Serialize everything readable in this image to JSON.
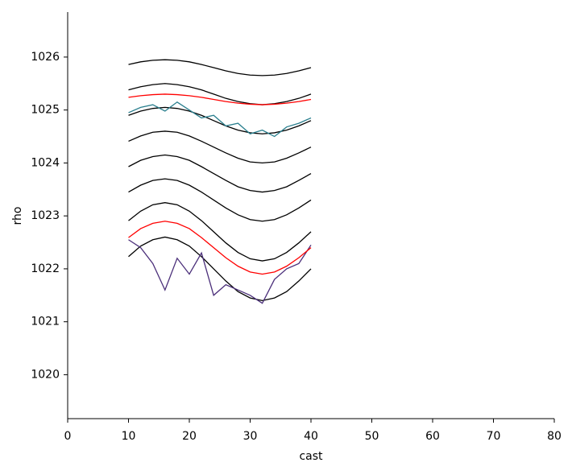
{
  "chart_data": {
    "type": "line",
    "x_label": "cast",
    "y_label": "rho",
    "x": [
      10,
      12,
      14,
      16,
      18,
      20,
      22,
      24,
      26,
      28,
      30,
      32,
      34,
      36,
      38,
      40
    ],
    "series": [
      {
        "color": "#000000",
        "values": [
          1025.86,
          1025.91,
          1025.94,
          1025.95,
          1025.94,
          1025.91,
          1025.86,
          1025.8,
          1025.74,
          1025.69,
          1025.66,
          1025.65,
          1025.66,
          1025.69,
          1025.74,
          1025.8
        ]
      },
      {
        "color": "#000000",
        "values": [
          1025.38,
          1025.44,
          1025.48,
          1025.5,
          1025.48,
          1025.44,
          1025.38,
          1025.3,
          1025.22,
          1025.16,
          1025.12,
          1025.1,
          1025.12,
          1025.16,
          1025.22,
          1025.3
        ]
      },
      {
        "color": "#000000",
        "values": [
          1024.9,
          1024.98,
          1025.03,
          1025.05,
          1025.03,
          1024.98,
          1024.9,
          1024.8,
          1024.7,
          1024.62,
          1024.57,
          1024.55,
          1024.57,
          1024.62,
          1024.7,
          1024.8
        ]
      },
      {
        "color": "#000000",
        "values": [
          1024.41,
          1024.51,
          1024.58,
          1024.6,
          1024.58,
          1024.51,
          1024.41,
          1024.3,
          1024.19,
          1024.09,
          1024.02,
          1024.0,
          1024.02,
          1024.09,
          1024.19,
          1024.3
        ]
      },
      {
        "color": "#000000",
        "values": [
          1023.93,
          1024.05,
          1024.12,
          1024.15,
          1024.12,
          1024.05,
          1023.93,
          1023.8,
          1023.67,
          1023.55,
          1023.48,
          1023.45,
          1023.48,
          1023.55,
          1023.67,
          1023.8
        ]
      },
      {
        "color": "#000000",
        "values": [
          1023.45,
          1023.58,
          1023.67,
          1023.7,
          1023.67,
          1023.58,
          1023.45,
          1023.3,
          1023.15,
          1023.02,
          1022.93,
          1022.9,
          1022.93,
          1023.02,
          1023.15,
          1023.3
        ]
      },
      {
        "color": "#000000",
        "values": [
          1022.91,
          1023.09,
          1023.21,
          1023.25,
          1023.21,
          1023.09,
          1022.91,
          1022.7,
          1022.49,
          1022.31,
          1022.19,
          1022.15,
          1022.19,
          1022.31,
          1022.49,
          1022.7
        ]
      },
      {
        "color": "#000000",
        "values": [
          1022.23,
          1022.43,
          1022.55,
          1022.6,
          1022.55,
          1022.43,
          1022.23,
          1022.0,
          1021.77,
          1021.57,
          1021.45,
          1021.4,
          1021.45,
          1021.57,
          1021.77,
          1022.0
        ]
      },
      {
        "color": "#2a7f8e",
        "values": [
          1024.95,
          1025.05,
          1025.1,
          1024.98,
          1025.15,
          1025.0,
          1024.85,
          1024.9,
          1024.7,
          1024.75,
          1024.55,
          1024.62,
          1024.5,
          1024.68,
          1024.75,
          1024.85
        ]
      },
      {
        "color": "#4b2f7a",
        "values": [
          1022.55,
          1022.4,
          1022.1,
          1021.6,
          1022.2,
          1021.9,
          1022.3,
          1021.5,
          1021.7,
          1021.6,
          1021.5,
          1021.35,
          1021.8,
          1022.0,
          1022.1,
          1022.45
        ]
      },
      {
        "color": "#ff0000",
        "values": [
          1025.24,
          1025.27,
          1025.29,
          1025.3,
          1025.29,
          1025.27,
          1025.24,
          1025.2,
          1025.16,
          1025.13,
          1025.11,
          1025.1,
          1025.11,
          1025.13,
          1025.16,
          1025.2
        ]
      },
      {
        "color": "#ff0000",
        "values": [
          1022.59,
          1022.76,
          1022.86,
          1022.9,
          1022.86,
          1022.76,
          1022.59,
          1022.4,
          1022.21,
          1022.05,
          1021.94,
          1021.9,
          1021.94,
          1022.05,
          1022.21,
          1022.4
        ]
      }
    ],
    "xlim": [
      0,
      80
    ],
    "xticks": [
      0,
      10,
      20,
      30,
      40,
      50,
      60,
      70,
      80
    ],
    "ylim": [
      1019.17,
      1026.85
    ],
    "yticks": [
      1020,
      1021,
      1022,
      1023,
      1024,
      1025,
      1026
    ]
  }
}
